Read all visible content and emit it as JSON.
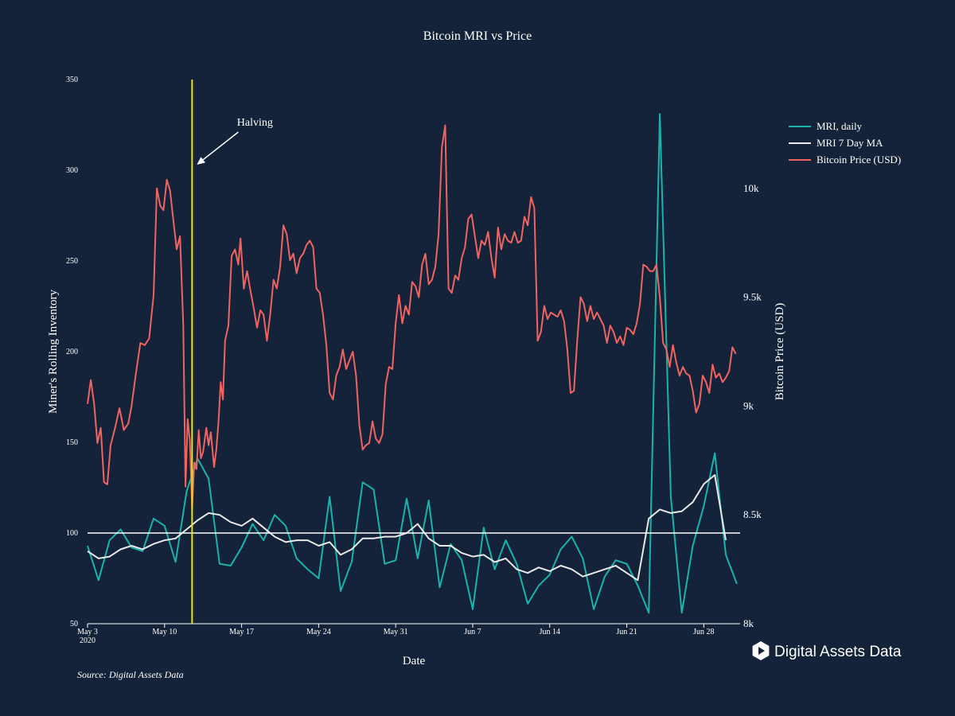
{
  "chart_data": {
    "type": "line",
    "title": "Bitcoin MRI vs Price",
    "xlabel": "Date",
    "ylabel_left": "Miner's Rolling Inventory",
    "ylabel_right": "Bitcoin Price (USD)",
    "x_tick_labels": [
      "May 3",
      "May 10",
      "May 17",
      "May 24",
      "May 31",
      "Jun 7",
      "Jun 14",
      "Jun 21",
      "Jun 28"
    ],
    "x_tick_year": "2020",
    "x_range_days": [
      0,
      59.3
    ],
    "y_left": {
      "range": [
        50,
        350
      ],
      "ticks": [
        "50",
        "100",
        "150",
        "200",
        "250",
        "300",
        "350"
      ]
    },
    "y_right": {
      "range": [
        8000,
        10500
      ],
      "ticks": [
        {
          "value": 8000,
          "label": "8k"
        },
        {
          "value": 8500,
          "label": "8.5k"
        },
        {
          "value": 9000,
          "label": "9k"
        },
        {
          "value": 9500,
          "label": "9.5k"
        },
        {
          "value": 10000,
          "label": "10k"
        }
      ]
    },
    "grid": false,
    "legend_position": "top-right",
    "reference_line": {
      "axis": "left",
      "value": 100
    },
    "annotation": {
      "text": "Halving",
      "day": 9.5
    },
    "series": [
      {
        "name": "MRI, daily",
        "color": "#1ab3aa",
        "axis": "left",
        "values": [
          93,
          74,
          96,
          102,
          92,
          90,
          108,
          104,
          84,
          123,
          141,
          130,
          83,
          82,
          92,
          105,
          96,
          110,
          104,
          86,
          80,
          75,
          120,
          68,
          84,
          128,
          124,
          83,
          85,
          119,
          86,
          118,
          70,
          94,
          85,
          58,
          103,
          80,
          96,
          83,
          61,
          71,
          77,
          91,
          98,
          86,
          58,
          76,
          85,
          83,
          71,
          56,
          331,
          120,
          56,
          93,
          115,
          144,
          88,
          72
        ]
      },
      {
        "name": "MRI 7 Day MA",
        "color": "#e8e8e8",
        "axis": "left",
        "values": [
          90,
          86,
          87,
          91,
          93,
          91,
          94,
          96,
          97,
          102,
          107,
          111,
          110,
          106,
          104,
          108,
          103,
          98,
          95,
          96,
          96,
          93,
          95,
          88,
          91,
          97,
          97,
          98,
          98,
          100,
          105,
          97,
          93,
          93,
          89,
          87,
          88,
          84,
          86,
          80,
          78,
          81,
          79,
          82,
          80,
          76,
          78,
          80,
          82,
          78,
          74,
          108,
          113,
          111,
          112,
          117,
          127,
          132,
          96
        ]
      },
      {
        "name": "Bitcoin Price (USD)",
        "color": "#ef6461",
        "axis": "right",
        "points": [
          [
            0,
            9010
          ],
          [
            0.3,
            9120
          ],
          [
            0.6,
            9010
          ],
          [
            0.9,
            8830
          ],
          [
            1.2,
            8900
          ],
          [
            1.5,
            8650
          ],
          [
            1.8,
            8640
          ],
          [
            2.1,
            8820
          ],
          [
            2.5,
            8900
          ],
          [
            2.9,
            8990
          ],
          [
            3.3,
            8890
          ],
          [
            3.7,
            8920
          ],
          [
            4.0,
            9000
          ],
          [
            4.4,
            9150
          ],
          [
            4.8,
            9290
          ],
          [
            5.2,
            9280
          ],
          [
            5.6,
            9310
          ],
          [
            6.0,
            9510
          ],
          [
            6.3,
            10000
          ],
          [
            6.6,
            9920
          ],
          [
            6.9,
            9900
          ],
          [
            7.2,
            10040
          ],
          [
            7.5,
            9990
          ],
          [
            7.8,
            9850
          ],
          [
            8.1,
            9720
          ],
          [
            8.4,
            9780
          ],
          [
            8.7,
            9370
          ],
          [
            8.9,
            8630
          ],
          [
            9.1,
            8940
          ],
          [
            9.3,
            8840
          ],
          [
            9.5,
            8530
          ],
          [
            9.7,
            8740
          ],
          [
            9.9,
            8710
          ],
          [
            10.1,
            8890
          ],
          [
            10.3,
            8760
          ],
          [
            10.5,
            8790
          ],
          [
            10.8,
            8900
          ],
          [
            11.0,
            8820
          ],
          [
            11.2,
            8880
          ],
          [
            11.5,
            8720
          ],
          [
            11.7,
            8800
          ],
          [
            11.9,
            8930
          ],
          [
            12.1,
            9110
          ],
          [
            12.3,
            9030
          ],
          [
            12.5,
            9300
          ],
          [
            12.8,
            9370
          ],
          [
            13.1,
            9690
          ],
          [
            13.4,
            9720
          ],
          [
            13.7,
            9650
          ],
          [
            13.9,
            9770
          ],
          [
            14.2,
            9540
          ],
          [
            14.5,
            9620
          ],
          [
            14.8,
            9530
          ],
          [
            15.1,
            9450
          ],
          [
            15.4,
            9360
          ],
          [
            15.7,
            9440
          ],
          [
            16.0,
            9420
          ],
          [
            16.3,
            9300
          ],
          [
            16.6,
            9420
          ],
          [
            16.9,
            9580
          ],
          [
            17.2,
            9540
          ],
          [
            17.5,
            9640
          ],
          [
            17.8,
            9830
          ],
          [
            18.1,
            9790
          ],
          [
            18.4,
            9670
          ],
          [
            18.7,
            9700
          ],
          [
            19.0,
            9610
          ],
          [
            19.3,
            9680
          ],
          [
            19.6,
            9700
          ],
          [
            19.9,
            9740
          ],
          [
            20.2,
            9760
          ],
          [
            20.5,
            9730
          ],
          [
            20.8,
            9540
          ],
          [
            21.1,
            9520
          ],
          [
            21.4,
            9420
          ],
          [
            21.7,
            9280
          ],
          [
            22.0,
            9060
          ],
          [
            22.3,
            9030
          ],
          [
            22.6,
            9140
          ],
          [
            22.9,
            9180
          ],
          [
            23.2,
            9260
          ],
          [
            23.5,
            9170
          ],
          [
            23.8,
            9210
          ],
          [
            24.1,
            9250
          ],
          [
            24.4,
            9140
          ],
          [
            24.7,
            8910
          ],
          [
            25.0,
            8800
          ],
          [
            25.3,
            8820
          ],
          [
            25.6,
            8830
          ],
          [
            25.9,
            8930
          ],
          [
            26.2,
            8850
          ],
          [
            26.5,
            8830
          ],
          [
            26.8,
            8870
          ],
          [
            27.1,
            9100
          ],
          [
            27.4,
            9180
          ],
          [
            27.7,
            9170
          ],
          [
            28.0,
            9380
          ],
          [
            28.3,
            9510
          ],
          [
            28.6,
            9380
          ],
          [
            28.9,
            9460
          ],
          [
            29.2,
            9420
          ],
          [
            29.5,
            9570
          ],
          [
            29.8,
            9550
          ],
          [
            30.1,
            9500
          ],
          [
            30.4,
            9650
          ],
          [
            30.7,
            9700
          ],
          [
            31.0,
            9560
          ],
          [
            31.3,
            9580
          ],
          [
            31.6,
            9640
          ],
          [
            31.9,
            9790
          ],
          [
            32.2,
            10190
          ],
          [
            32.5,
            10290
          ],
          [
            32.8,
            9540
          ],
          [
            33.1,
            9520
          ],
          [
            33.4,
            9600
          ],
          [
            33.7,
            9580
          ],
          [
            34.0,
            9680
          ],
          [
            34.3,
            9730
          ],
          [
            34.6,
            9860
          ],
          [
            34.9,
            9880
          ],
          [
            35.2,
            9780
          ],
          [
            35.5,
            9680
          ],
          [
            35.8,
            9760
          ],
          [
            36.1,
            9740
          ],
          [
            36.4,
            9800
          ],
          [
            36.7,
            9680
          ],
          [
            37.0,
            9590
          ],
          [
            37.3,
            9820
          ],
          [
            37.6,
            9720
          ],
          [
            37.9,
            9790
          ],
          [
            38.2,
            9760
          ],
          [
            38.5,
            9750
          ],
          [
            38.8,
            9800
          ],
          [
            39.1,
            9750
          ],
          [
            39.4,
            9760
          ],
          [
            39.7,
            9870
          ],
          [
            40.0,
            9830
          ],
          [
            40.3,
            9960
          ],
          [
            40.6,
            9910
          ],
          [
            40.9,
            9300
          ],
          [
            41.2,
            9340
          ],
          [
            41.5,
            9460
          ],
          [
            41.8,
            9400
          ],
          [
            42.1,
            9430
          ],
          [
            42.4,
            9420
          ],
          [
            42.7,
            9410
          ],
          [
            43.0,
            9440
          ],
          [
            43.3,
            9390
          ],
          [
            43.6,
            9260
          ],
          [
            43.9,
            9060
          ],
          [
            44.2,
            9070
          ],
          [
            44.5,
            9300
          ],
          [
            44.8,
            9500
          ],
          [
            45.1,
            9470
          ],
          [
            45.4,
            9390
          ],
          [
            45.7,
            9460
          ],
          [
            46.0,
            9400
          ],
          [
            46.3,
            9430
          ],
          [
            46.6,
            9400
          ],
          [
            46.9,
            9370
          ],
          [
            47.2,
            9290
          ],
          [
            47.5,
            9370
          ],
          [
            47.8,
            9340
          ],
          [
            48.1,
            9290
          ],
          [
            48.4,
            9320
          ],
          [
            48.7,
            9280
          ],
          [
            49.0,
            9360
          ],
          [
            49.3,
            9350
          ],
          [
            49.6,
            9330
          ],
          [
            49.9,
            9380
          ],
          [
            50.2,
            9470
          ],
          [
            50.5,
            9650
          ],
          [
            50.8,
            9640
          ],
          [
            51.1,
            9620
          ],
          [
            51.4,
            9620
          ],
          [
            51.7,
            9650
          ],
          [
            52.0,
            9500
          ],
          [
            52.3,
            9290
          ],
          [
            52.6,
            9260
          ],
          [
            52.9,
            9180
          ],
          [
            53.2,
            9280
          ],
          [
            53.5,
            9200
          ],
          [
            53.8,
            9140
          ],
          [
            54.1,
            9180
          ],
          [
            54.4,
            9150
          ],
          [
            54.7,
            9140
          ],
          [
            55.0,
            9070
          ],
          [
            55.3,
            8970
          ],
          [
            55.6,
            9010
          ],
          [
            55.9,
            9140
          ],
          [
            56.2,
            9110
          ],
          [
            56.5,
            9060
          ],
          [
            56.8,
            9190
          ],
          [
            57.1,
            9130
          ],
          [
            57.4,
            9150
          ],
          [
            57.7,
            9110
          ],
          [
            58.0,
            9130
          ],
          [
            58.3,
            9160
          ],
          [
            58.6,
            9270
          ],
          [
            58.9,
            9240
          ]
        ]
      }
    ]
  },
  "source_text": "Source: Digital Assets Data",
  "brand_text": "Digital Assets Data",
  "colors": {
    "background": "#15233a",
    "halving": "#e8e21a",
    "reference": "#ffffff"
  }
}
